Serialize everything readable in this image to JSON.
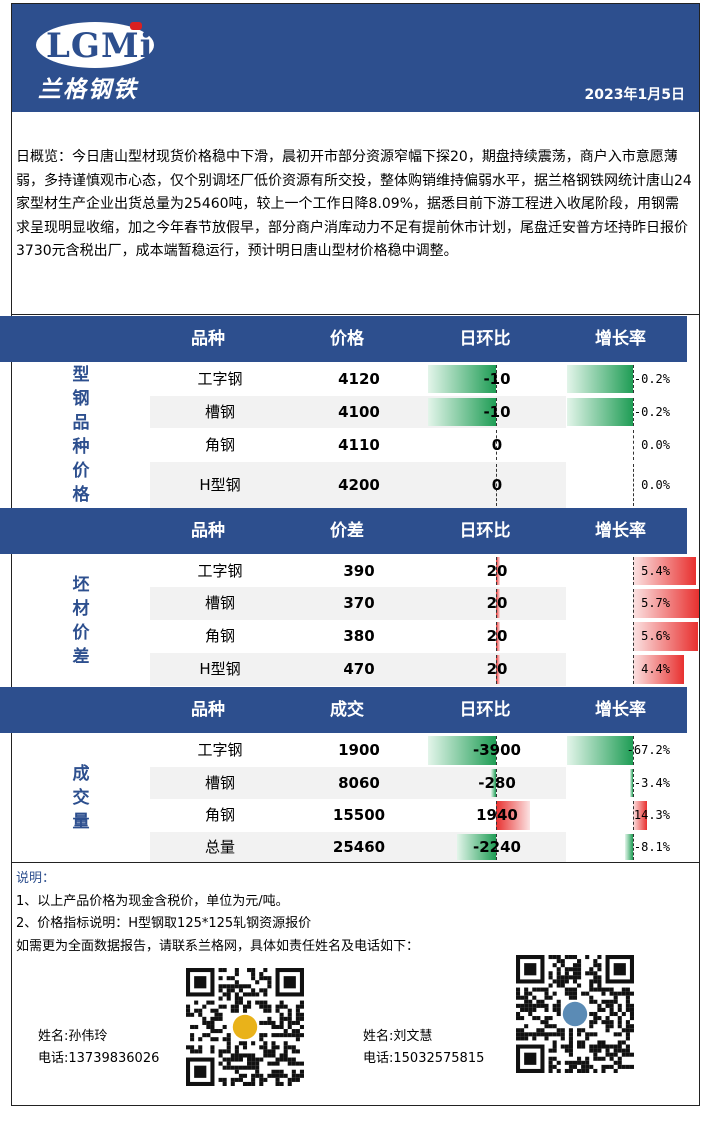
{
  "header": {
    "logo_text": "LGMi",
    "logo_cn": "兰格钢铁",
    "date": "2023年1月5日"
  },
  "summary": "日概览：今日唐山型材现货价格稳中下滑，晨初开市部分资源窄幅下探20，期盘持续震荡，商户入市意愿薄弱，多持谨慎观市心态，仅个别调坯厂低价资源有所交投，整体购销维持偏弱水平，据兰格钢铁网统计唐山24家型材生产企业出货总量为25460吨，较上一个工作日降8.09%，据悉目前下游工程进入收尾阶段，用钢需求呈现明显收缩，加之今年春节放假早，部分商户消库动力不足有提前休市计划，尾盘迁安普方坯持昨日报价3730元含税出厂，成本端暂稳运行，预计明日唐山型材价格稳中调整。",
  "sections": [
    {
      "side_label": [
        "型",
        "钢",
        "品",
        "种",
        "价",
        "格"
      ],
      "headers": [
        "品种",
        "价格",
        "日环比",
        "增长率"
      ],
      "rows": [
        {
          "name": "工字钢",
          "value": "4120",
          "change": "-10",
          "change_num": -10,
          "rate": "-0.2%",
          "rate_num": -0.2
        },
        {
          "name": "槽钢",
          "value": "4100",
          "change": "-10",
          "change_num": -10,
          "rate": "-0.2%",
          "rate_num": -0.2
        },
        {
          "name": "角钢",
          "value": "4110",
          "change": "0",
          "change_num": 0,
          "rate": "0.0%",
          "rate_num": 0
        },
        {
          "name": "H型钢",
          "value": "4200",
          "change": "0",
          "change_num": 0,
          "rate": "0.0%",
          "rate_num": 0
        }
      ]
    },
    {
      "side_label": [
        "坯",
        "材",
        "价",
        "差"
      ],
      "headers": [
        "品种",
        "价差",
        "日环比",
        "增长率"
      ],
      "rows": [
        {
          "name": "工字钢",
          "value": "390",
          "change": "20",
          "change_num": 20,
          "rate": "5.4%",
          "rate_num": 5.4
        },
        {
          "name": "槽钢",
          "value": "370",
          "change": "20",
          "change_num": 20,
          "rate": "5.7%",
          "rate_num": 5.7
        },
        {
          "name": "角钢",
          "value": "380",
          "change": "20",
          "change_num": 20,
          "rate": "5.6%",
          "rate_num": 5.6
        },
        {
          "name": "H型钢",
          "value": "470",
          "change": "20",
          "change_num": 20,
          "rate": "4.4%",
          "rate_num": 4.4
        }
      ]
    },
    {
      "side_label": [
        "成",
        "交",
        "量"
      ],
      "headers": [
        "品种",
        "成交",
        "日环比",
        "增长率"
      ],
      "rows": [
        {
          "name": "工字钢",
          "value": "1900",
          "change": "-3900",
          "change_num": -3900,
          "rate": "-67.2%",
          "rate_num": -67.2
        },
        {
          "name": "槽钢",
          "value": "8060",
          "change": "-280",
          "change_num": -280,
          "rate": "-3.4%",
          "rate_num": -3.4
        },
        {
          "name": "角钢",
          "value": "15500",
          "change": "1940",
          "change_num": 1940,
          "rate": "14.3%",
          "rate_num": 14.3
        },
        {
          "name": "总量",
          "value": "25460",
          "change": "-2240",
          "change_num": -2240,
          "rate": "-8.1%",
          "rate_num": -8.1
        }
      ]
    }
  ],
  "notes": {
    "title": "说明：",
    "line1": "1、以上产品价格为现金含税价，单位为元/吨。",
    "line2": "2、价格指标说明：H型钢取125*125轧钢资源报价",
    "line3": "如需更为全面数据报告，请联系兰格网，具体如责任姓名及电话如下："
  },
  "contacts": [
    {
      "name": "姓名:孙伟玲",
      "phone": "电话:13739836026"
    },
    {
      "name": "姓名:刘文慧",
      "phone": "电话:15032575815"
    }
  ],
  "colors": {
    "brand": "#2d4f8e",
    "up": "#e8302f",
    "down": "#1f9d55"
  }
}
